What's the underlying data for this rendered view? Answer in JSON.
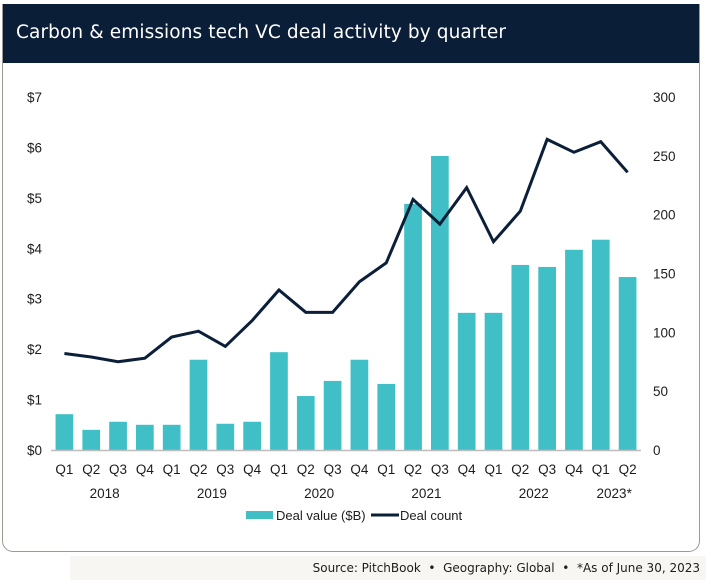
{
  "header": {
    "title": "Carbon & emissions tech VC deal activity by quarter"
  },
  "footer": {
    "source": "Source: PitchBook  •  Geography: Global  •  *As of June 30, 2023"
  },
  "colors": {
    "header_bg": "#0b1e38",
    "bar": "#40c0c6",
    "line": "#0c1f38"
  },
  "chart_data": {
    "type": "bar",
    "title": "Carbon & emissions tech VC deal activity by quarter",
    "categories": [
      "Q1",
      "Q2",
      "Q3",
      "Q4",
      "Q1",
      "Q2",
      "Q3",
      "Q4",
      "Q1",
      "Q2",
      "Q3",
      "Q4",
      "Q1",
      "Q2",
      "Q3",
      "Q4",
      "Q1",
      "Q2",
      "Q3",
      "Q4",
      "Q1",
      "Q2"
    ],
    "year_groups": [
      {
        "label": "2018",
        "start": 0,
        "end": 3
      },
      {
        "label": "2019",
        "start": 4,
        "end": 7
      },
      {
        "label": "2020",
        "start": 8,
        "end": 11
      },
      {
        "label": "2021",
        "start": 12,
        "end": 15
      },
      {
        "label": "2022",
        "start": 16,
        "end": 19
      },
      {
        "label": "2023*",
        "start": 20,
        "end": 21
      }
    ],
    "series": [
      {
        "name": "Deal value ($B)",
        "type": "bar",
        "axis": "left",
        "values": [
          0.71,
          0.4,
          0.56,
          0.5,
          0.5,
          1.79,
          0.52,
          0.56,
          1.94,
          1.07,
          1.37,
          1.79,
          1.31,
          4.88,
          5.83,
          2.72,
          2.72,
          3.67,
          3.63,
          3.97,
          4.17,
          3.43
        ]
      },
      {
        "name": "Deal count",
        "type": "line",
        "axis": "right",
        "values": [
          82,
          79,
          75,
          78,
          96,
          101,
          88,
          110,
          136,
          117,
          117,
          143,
          159,
          213,
          192,
          223,
          177,
          203,
          264,
          253,
          262,
          236
        ]
      }
    ],
    "y_left": {
      "label": "",
      "ylim": [
        0,
        7
      ],
      "ticks": [
        0,
        1,
        2,
        3,
        4,
        5,
        6,
        7
      ],
      "tick_labels": [
        "$0",
        "$1",
        "$2",
        "$3",
        "$4",
        "$5",
        "$6",
        "$7"
      ]
    },
    "y_right": {
      "label": "",
      "ylim": [
        0,
        300
      ],
      "ticks": [
        0,
        50,
        100,
        150,
        200,
        250,
        300
      ],
      "tick_labels": [
        "0",
        "50",
        "100",
        "150",
        "200",
        "250",
        "300"
      ]
    },
    "xlabel": "",
    "grid": false,
    "legend": {
      "position": "bottom-center",
      "entries": [
        "Deal value ($B)",
        "Deal count"
      ]
    }
  }
}
